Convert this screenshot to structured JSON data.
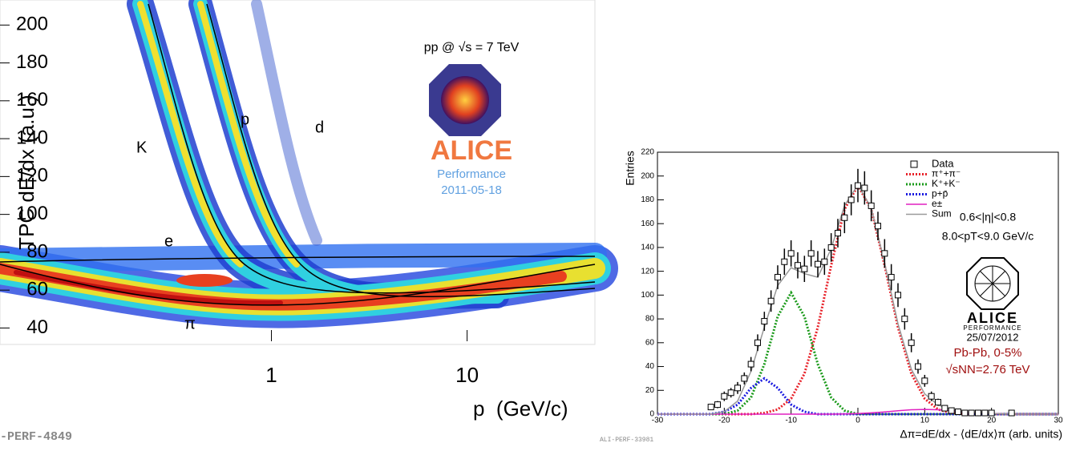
{
  "chart_data": [
    {
      "type": "heatmap",
      "xlabel": "p  (GeV/c)",
      "ylabel": "TPC dE/dx (a.u.)",
      "xscale": "log",
      "xlim": [
        0.041,
        45
      ],
      "ylim": [
        33,
        209
      ],
      "xticks": [
        1,
        10
      ],
      "yticks": [
        40,
        60,
        80,
        100,
        120,
        140,
        160,
        180,
        200
      ],
      "band_labels": [
        "K",
        "p",
        "d",
        "e",
        "π"
      ],
      "annotations": {
        "system": "pp @ √s = 7 TeV",
        "logo": "ALICE",
        "status": "Performance",
        "date": "2011-05-18",
        "id": "-PERF-4849"
      }
    },
    {
      "type": "errorbar",
      "xlabel": "Δπ=dE/dx - ⟨dE/dx⟩π (arb. units)",
      "ylabel": "Entries",
      "xlim": [
        -30,
        30
      ],
      "ylim": [
        0,
        220
      ],
      "xticks": [
        -30,
        -20,
        -10,
        0,
        10,
        20,
        30
      ],
      "yticks": [
        0,
        20,
        40,
        60,
        80,
        100,
        120,
        140,
        160,
        180,
        200,
        220
      ],
      "data": {
        "name": "Data",
        "x": [
          -22,
          -21,
          -20,
          -19,
          -18,
          -17,
          -16,
          -15,
          -14,
          -13,
          -12,
          -11,
          -10,
          -9,
          -8,
          -7,
          -6,
          -5,
          -4,
          -3,
          -2,
          -1,
          0,
          1,
          2,
          3,
          4,
          5,
          6,
          7,
          8,
          9,
          10,
          11,
          12,
          13,
          14,
          15,
          16,
          17,
          18,
          19,
          20,
          23
        ],
        "values": [
          6,
          8,
          15,
          18,
          22,
          30,
          42,
          60,
          78,
          95,
          115,
          128,
          135,
          125,
          122,
          135,
          126,
          128,
          140,
          152,
          165,
          180,
          192,
          190,
          175,
          158,
          135,
          115,
          100,
          80,
          60,
          40,
          28,
          15,
          10,
          5,
          3,
          2,
          1,
          1,
          1,
          1,
          1,
          1
        ],
        "errors": [
          2,
          3,
          4,
          4,
          5,
          5,
          6,
          7,
          8,
          9,
          10,
          11,
          11,
          11,
          11,
          11,
          11,
          11,
          12,
          12,
          13,
          13,
          14,
          14,
          13,
          12,
          12,
          11,
          10,
          9,
          8,
          6,
          5,
          4,
          3,
          2,
          2,
          1,
          1,
          1,
          1,
          1,
          1,
          1
        ]
      },
      "series": [
        {
          "name": "π⁺+π⁻",
          "color": "#e8222a",
          "style": "dotted",
          "x": [
            -30,
            -28,
            -26,
            -24,
            -22,
            -20,
            -18,
            -16,
            -14,
            -12,
            -10,
            -8,
            -6,
            -4,
            -2,
            0,
            2,
            4,
            6,
            8,
            10,
            12,
            14,
            16,
            18,
            20,
            22,
            24,
            26,
            28,
            30
          ],
          "values": [
            0,
            0,
            0,
            0,
            0,
            0,
            0,
            0,
            1,
            4,
            13,
            34,
            73,
            125,
            172,
            192,
            172,
            125,
            73,
            34,
            13,
            4,
            1,
            0,
            0,
            0,
            0,
            0,
            0,
            0,
            0
          ]
        },
        {
          "name": "K⁺+K⁻",
          "color": "#1a9a1a",
          "style": "dotted",
          "x": [
            -30,
            -28,
            -26,
            -24,
            -22,
            -20,
            -18,
            -16,
            -14,
            -12,
            -10,
            -8,
            -6,
            -4,
            -2,
            0,
            2,
            4,
            6,
            8,
            10,
            12,
            14,
            16,
            18,
            20,
            22,
            24,
            26,
            28,
            30
          ],
          "values": [
            0,
            0,
            0,
            0,
            0,
            0,
            3,
            14,
            42,
            82,
            102,
            82,
            42,
            14,
            3,
            0,
            0,
            0,
            0,
            0,
            0,
            0,
            0,
            0,
            0,
            0,
            0,
            0,
            0,
            0,
            0
          ]
        },
        {
          "name": "p+p̄",
          "color": "#1a1ae0",
          "style": "dotted",
          "x": [
            -30,
            -28,
            -26,
            -24,
            -22,
            -20,
            -18,
            -16,
            -14,
            -12,
            -10,
            -8,
            -6,
            -4,
            -2,
            0,
            2,
            4,
            6,
            8,
            10,
            12,
            14,
            16,
            18,
            20,
            22,
            24,
            26,
            28,
            30
          ],
          "values": [
            0,
            0,
            0,
            0,
            0,
            2,
            8,
            22,
            30,
            22,
            8,
            2,
            0,
            0,
            0,
            0,
            0,
            0,
            0,
            0,
            0,
            0,
            0,
            0,
            0,
            0,
            0,
            0,
            0,
            0,
            0
          ]
        },
        {
          "name": "e±",
          "color": "#e020c0",
          "style": "solid",
          "x": [
            -30,
            -28,
            -26,
            -24,
            -22,
            -20,
            -18,
            -16,
            -14,
            -12,
            -10,
            -8,
            -6,
            -4,
            -2,
            0,
            2,
            4,
            6,
            8,
            10,
            12,
            14,
            16,
            18,
            20,
            22,
            24,
            26,
            28,
            30
          ],
          "values": [
            0,
            0,
            0,
            0,
            0,
            0,
            0,
            0,
            0,
            0,
            0,
            0,
            0,
            0,
            0.2,
            0.5,
            1.1,
            1.9,
            2.9,
            3.7,
            4,
            3.7,
            2.9,
            1.9,
            1.1,
            0.5,
            0.2,
            0,
            0,
            0,
            0
          ]
        },
        {
          "name": "Sum",
          "color": "#999999",
          "style": "solid",
          "x": [
            -30,
            -28,
            -26,
            -24,
            -22,
            -20,
            -18,
            -16,
            -14,
            -12,
            -10,
            -8,
            -6,
            -4,
            -2,
            0,
            2,
            4,
            6,
            8,
            10,
            12,
            14,
            16,
            18,
            20,
            22,
            24,
            26,
            28,
            30
          ],
          "values": [
            0,
            0,
            0,
            0,
            0,
            2,
            11,
            36,
            73,
            108,
            123,
            118,
            115,
            139,
            175.2,
            192.5,
            173.1,
            126.9,
            75.9,
            37.7,
            17,
            7.7,
            3.9,
            1.9,
            1.1,
            0.5,
            0.2,
            0,
            0,
            0,
            0
          ]
        }
      ],
      "annotations": {
        "eta": "0.6<|η|<0.8",
        "pt": "8.0<pT<9.0 GeV/c",
        "logo": "ALICE",
        "status": "PERFORMANCE",
        "date": "25/07/2012",
        "system": "Pb-Pb, 0-5%",
        "energy": "√sNN=2.76 TeV",
        "id": "ALI-PERF-33981"
      }
    }
  ]
}
